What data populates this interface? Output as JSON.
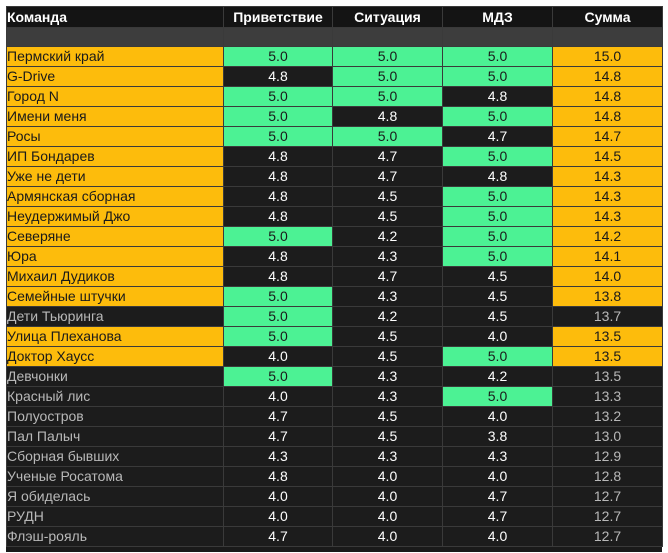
{
  "columns": [
    "Команда",
    "Приветствие",
    "Ситуация",
    "МДЗ",
    "Сумма"
  ],
  "colors": {
    "highlight_green": "#4cf294",
    "highlight_orange": "#fdbc0c",
    "dark": "#1c1c1c"
  },
  "rows": [
    {
      "team": "Пермский край",
      "greeting": "5.0",
      "situation": "5.0",
      "mdz": "5.0",
      "sum": "15.0",
      "qualified": true,
      "greeting_best": true,
      "situation_best": true,
      "mdz_best": true
    },
    {
      "team": "G-Drive",
      "greeting": "4.8",
      "situation": "5.0",
      "mdz": "5.0",
      "sum": "14.8",
      "qualified": true,
      "greeting_best": false,
      "situation_best": true,
      "mdz_best": true
    },
    {
      "team": "Город N",
      "greeting": "5.0",
      "situation": "5.0",
      "mdz": "4.8",
      "sum": "14.8",
      "qualified": true,
      "greeting_best": true,
      "situation_best": true,
      "mdz_best": false
    },
    {
      "team": "Имени меня",
      "greeting": "5.0",
      "situation": "4.8",
      "mdz": "5.0",
      "sum": "14.8",
      "qualified": true,
      "greeting_best": true,
      "situation_best": false,
      "mdz_best": true
    },
    {
      "team": "Росы",
      "greeting": "5.0",
      "situation": "5.0",
      "mdz": "4.7",
      "sum": "14.7",
      "qualified": true,
      "greeting_best": true,
      "situation_best": true,
      "mdz_best": false
    },
    {
      "team": "ИП Бондарев",
      "greeting": "4.8",
      "situation": "4.7",
      "mdz": "5.0",
      "sum": "14.5",
      "qualified": true,
      "greeting_best": false,
      "situation_best": false,
      "mdz_best": true
    },
    {
      "team": "Уже не дети",
      "greeting": "4.8",
      "situation": "4.7",
      "mdz": "4.8",
      "sum": "14.3",
      "qualified": true,
      "greeting_best": false,
      "situation_best": false,
      "mdz_best": false
    },
    {
      "team": "Армянская сборная",
      "greeting": "4.8",
      "situation": "4.5",
      "mdz": "5.0",
      "sum": "14.3",
      "qualified": true,
      "greeting_best": false,
      "situation_best": false,
      "mdz_best": true
    },
    {
      "team": "Неудержимый Джо",
      "greeting": "4.8",
      "situation": "4.5",
      "mdz": "5.0",
      "sum": "14.3",
      "qualified": true,
      "greeting_best": false,
      "situation_best": false,
      "mdz_best": true
    },
    {
      "team": "Северяне",
      "greeting": "5.0",
      "situation": "4.2",
      "mdz": "5.0",
      "sum": "14.2",
      "qualified": true,
      "greeting_best": true,
      "situation_best": false,
      "mdz_best": true
    },
    {
      "team": "Юра",
      "greeting": "4.8",
      "situation": "4.3",
      "mdz": "5.0",
      "sum": "14.1",
      "qualified": true,
      "greeting_best": false,
      "situation_best": false,
      "mdz_best": true
    },
    {
      "team": "Михаил Дудиков",
      "greeting": "4.8",
      "situation": "4.7",
      "mdz": "4.5",
      "sum": "14.0",
      "qualified": true,
      "greeting_best": false,
      "situation_best": false,
      "mdz_best": false
    },
    {
      "team": "Семейные штучки",
      "greeting": "5.0",
      "situation": "4.3",
      "mdz": "4.5",
      "sum": "13.8",
      "qualified": true,
      "greeting_best": true,
      "situation_best": false,
      "mdz_best": false
    },
    {
      "team": "Дети Тьюринга",
      "greeting": "5.0",
      "situation": "4.2",
      "mdz": "4.5",
      "sum": "13.7",
      "qualified": false,
      "greeting_best": true,
      "situation_best": false,
      "mdz_best": false
    },
    {
      "team": "Улица Плеханова",
      "greeting": "5.0",
      "situation": "4.5",
      "mdz": "4.0",
      "sum": "13.5",
      "qualified": true,
      "greeting_best": true,
      "situation_best": false,
      "mdz_best": false
    },
    {
      "team": "Доктор Хаусс",
      "greeting": "4.0",
      "situation": "4.5",
      "mdz": "5.0",
      "sum": "13.5",
      "qualified": true,
      "greeting_best": false,
      "situation_best": false,
      "mdz_best": true
    },
    {
      "team": "Девчонки",
      "greeting": "5.0",
      "situation": "4.3",
      "mdz": "4.2",
      "sum": "13.5",
      "qualified": false,
      "greeting_best": true,
      "situation_best": false,
      "mdz_best": false
    },
    {
      "team": "Красный лис",
      "greeting": "4.0",
      "situation": "4.3",
      "mdz": "5.0",
      "sum": "13.3",
      "qualified": false,
      "greeting_best": false,
      "situation_best": false,
      "mdz_best": true
    },
    {
      "team": "Полуостров",
      "greeting": "4.7",
      "situation": "4.5",
      "mdz": "4.0",
      "sum": "13.2",
      "qualified": false,
      "greeting_best": false,
      "situation_best": false,
      "mdz_best": false
    },
    {
      "team": "Пал Палыч",
      "greeting": "4.7",
      "situation": "4.5",
      "mdz": "3.8",
      "sum": "13.0",
      "qualified": false,
      "greeting_best": false,
      "situation_best": false,
      "mdz_best": false
    },
    {
      "team": "Сборная бывших",
      "greeting": "4.3",
      "situation": "4.3",
      "mdz": "4.3",
      "sum": "12.9",
      "qualified": false,
      "greeting_best": false,
      "situation_best": false,
      "mdz_best": false
    },
    {
      "team": "Ученые Росатома",
      "greeting": "4.8",
      "situation": "4.0",
      "mdz": "4.0",
      "sum": "12.8",
      "qualified": false,
      "greeting_best": false,
      "situation_best": false,
      "mdz_best": false
    },
    {
      "team": "Я обиделась",
      "greeting": "4.0",
      "situation": "4.0",
      "mdz": "4.7",
      "sum": "12.7",
      "qualified": false,
      "greeting_best": false,
      "situation_best": false,
      "mdz_best": false
    },
    {
      "team": "РУДН",
      "greeting": "4.0",
      "situation": "4.0",
      "mdz": "4.7",
      "sum": "12.7",
      "qualified": false,
      "greeting_best": false,
      "situation_best": false,
      "mdz_best": false
    },
    {
      "team": "Флэш-рояль",
      "greeting": "4.7",
      "situation": "4.0",
      "mdz": "4.0",
      "sum": "12.7",
      "qualified": false,
      "greeting_best": false,
      "situation_best": false,
      "mdz_best": false
    }
  ]
}
